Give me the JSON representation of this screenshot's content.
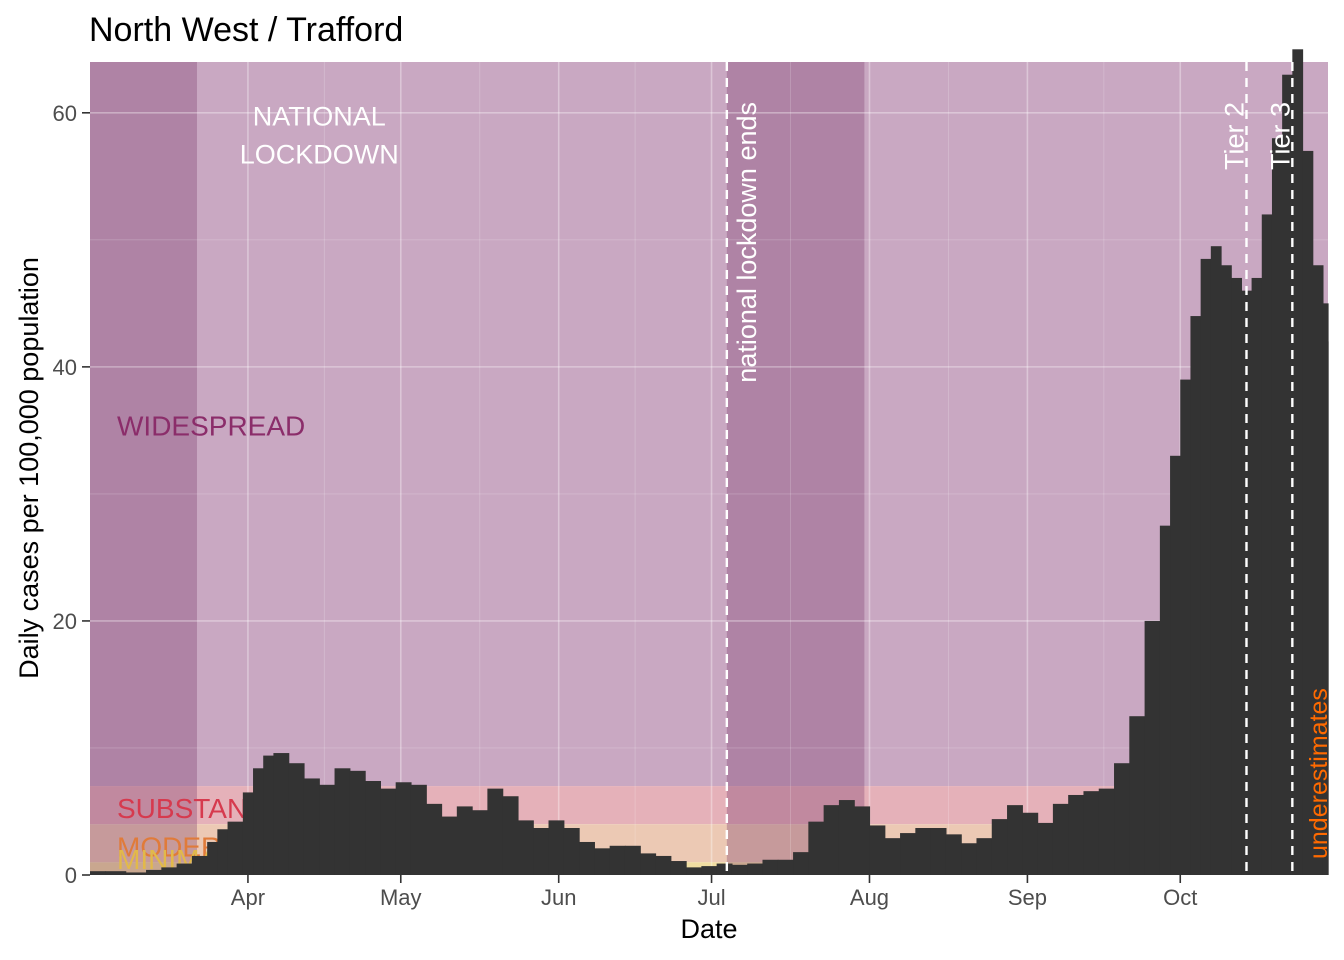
{
  "chart_data": {
    "type": "bar",
    "title": "North West / Trafford",
    "xlabel": "Date",
    "ylabel": "Daily cases per 100,000 population",
    "x_ticks": [
      "Apr",
      "May",
      "Jun",
      "Jul",
      "Aug",
      "Sep",
      "Oct"
    ],
    "x_tick_dates": [
      "2020-04-01",
      "2020-05-01",
      "2020-06-01",
      "2020-07-01",
      "2020-08-01",
      "2020-09-01",
      "2020-10-01"
    ],
    "xlim": [
      "2020-03-01",
      "2020-10-30"
    ],
    "y_ticks": [
      0,
      20,
      40,
      60
    ],
    "ylim": [
      0,
      64
    ],
    "grid": true,
    "series_color": "#333333",
    "x": [
      "2020-03-01",
      "2020-03-04",
      "2020-03-08",
      "2020-03-12",
      "2020-03-15",
      "2020-03-18",
      "2020-03-21",
      "2020-03-24",
      "2020-03-26",
      "2020-03-28",
      "2020-03-31",
      "2020-04-02",
      "2020-04-04",
      "2020-04-06",
      "2020-04-09",
      "2020-04-12",
      "2020-04-15",
      "2020-04-18",
      "2020-04-21",
      "2020-04-24",
      "2020-04-27",
      "2020-04-30",
      "2020-05-03",
      "2020-05-06",
      "2020-05-09",
      "2020-05-12",
      "2020-05-15",
      "2020-05-18",
      "2020-05-21",
      "2020-05-24",
      "2020-05-27",
      "2020-05-30",
      "2020-06-02",
      "2020-06-05",
      "2020-06-08",
      "2020-06-11",
      "2020-06-14",
      "2020-06-17",
      "2020-06-20",
      "2020-06-23",
      "2020-06-26",
      "2020-06-29",
      "2020-07-02",
      "2020-07-05",
      "2020-07-08",
      "2020-07-11",
      "2020-07-14",
      "2020-07-17",
      "2020-07-20",
      "2020-07-23",
      "2020-07-26",
      "2020-07-29",
      "2020-08-01",
      "2020-08-04",
      "2020-08-07",
      "2020-08-10",
      "2020-08-13",
      "2020-08-16",
      "2020-08-19",
      "2020-08-22",
      "2020-08-25",
      "2020-08-28",
      "2020-08-31",
      "2020-09-03",
      "2020-09-06",
      "2020-09-09",
      "2020-09-12",
      "2020-09-15",
      "2020-09-18",
      "2020-09-21",
      "2020-09-24",
      "2020-09-27",
      "2020-09-29",
      "2020-10-01",
      "2020-10-03",
      "2020-10-05",
      "2020-10-07",
      "2020-10-09",
      "2020-10-11",
      "2020-10-13",
      "2020-10-15",
      "2020-10-17",
      "2020-10-19",
      "2020-10-21",
      "2020-10-23",
      "2020-10-25",
      "2020-10-27",
      "2020-10-29",
      "2020-10-30"
    ],
    "values": [
      0.3,
      0.3,
      0.2,
      0.4,
      0.6,
      0.9,
      1.5,
      2.6,
      3.6,
      4.2,
      6.5,
      8.4,
      9.4,
      9.6,
      8.8,
      7.6,
      7.1,
      8.4,
      8.2,
      7.4,
      6.8,
      7.3,
      7.1,
      5.6,
      4.6,
      5.4,
      5.1,
      6.8,
      6.2,
      4.3,
      3.7,
      4.3,
      3.7,
      2.6,
      2.1,
      2.3,
      2.3,
      1.7,
      1.5,
      1.1,
      0.6,
      0.7,
      0.9,
      0.8,
      0.9,
      1.2,
      1.2,
      1.8,
      4.2,
      5.5,
      5.9,
      5.4,
      3.9,
      2.9,
      3.3,
      3.7,
      3.7,
      3.2,
      2.5,
      2.9,
      4.4,
      5.5,
      4.9,
      4.1,
      5.6,
      6.3,
      6.6,
      6.8,
      8.8,
      12.5,
      20.0,
      27.5,
      33.0,
      39.0,
      44.0,
      48.5,
      49.5,
      48.0,
      47.0,
      46.0,
      47.0,
      52.0,
      58.0,
      63.0,
      65.0,
      57.0,
      48.0,
      45.0,
      42.0
    ],
    "bands": [
      {
        "label": "WIDESPREAD",
        "from": 7,
        "to": 64,
        "color": "#c9a8c2",
        "label_color": "#8b2d6a"
      },
      {
        "label": "SUBSTANTIAL",
        "from": 4,
        "to": 7,
        "color": "#e5b1b9",
        "label_color": "#d63a4e"
      },
      {
        "label": "MODERATE",
        "from": 1,
        "to": 4,
        "color": "#ecc9b4",
        "label_color": "#e07b3a"
      },
      {
        "label": "MINIMAL",
        "from": 0,
        "to": 1,
        "color": "#f0dda2",
        "label_color": "#e2b94a"
      }
    ],
    "shaded_periods": [
      {
        "from": "2020-03-01",
        "to": "2020-03-22"
      },
      {
        "from": "2020-07-04",
        "to": "2020-07-31"
      }
    ],
    "annotations": [
      {
        "text": "NATIONAL",
        "date": "2020-04-15",
        "y": 59,
        "color": "#ffffff"
      },
      {
        "text": "LOCKDOWN",
        "date": "2020-04-15",
        "y": 56,
        "color": "#ffffff"
      },
      {
        "text": "national lockdown ends",
        "date": "2020-07-04",
        "color": "#ffffff",
        "rotated": true
      },
      {
        "text": "Tier 2",
        "date": "2020-10-14",
        "color": "#ffffff",
        "rotated": true
      },
      {
        "text": "Tier 3",
        "date": "2020-10-23",
        "color": "#ffffff",
        "rotated": true
      },
      {
        "text": "underestimates",
        "date": "2020-10-28",
        "color": "#ff6a00",
        "rotated": true
      }
    ],
    "vlines": [
      "2020-07-04",
      "2020-10-14",
      "2020-10-23"
    ]
  }
}
